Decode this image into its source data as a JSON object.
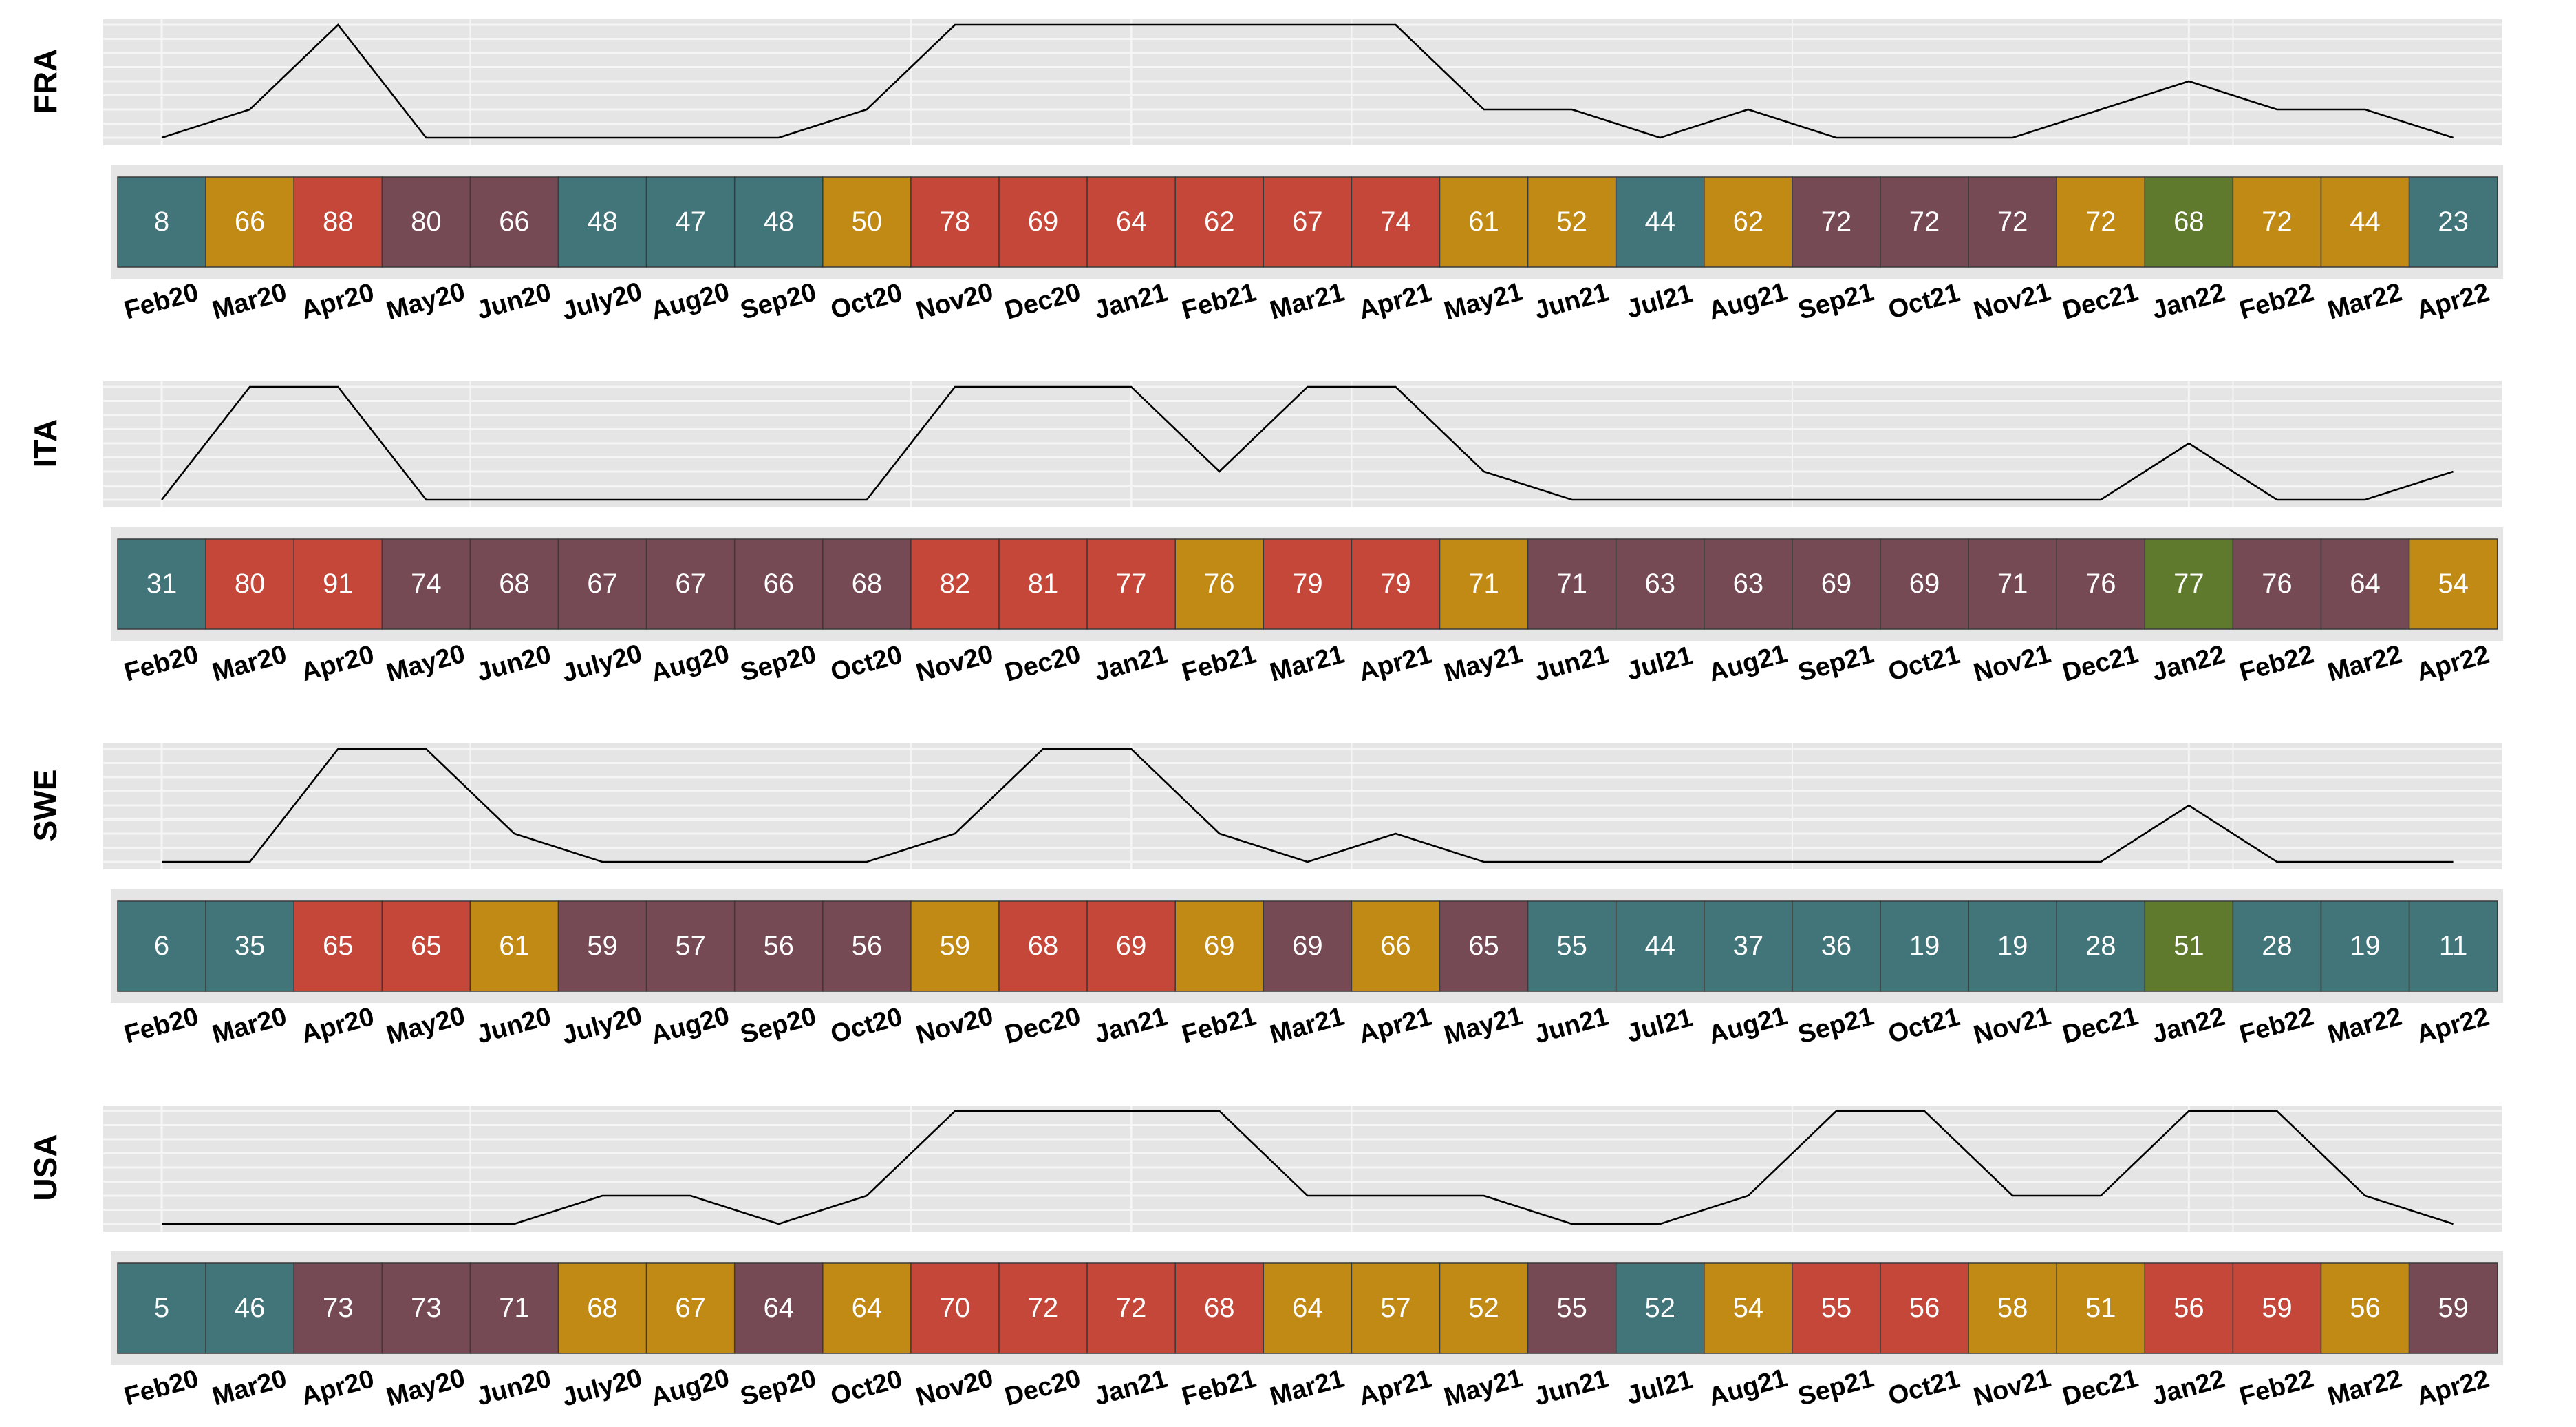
{
  "chart_data": {
    "type": "heatmap",
    "months": [
      "Feb20",
      "Mar20",
      "Apr20",
      "May20",
      "Jun20",
      "July20",
      "Aug20",
      "Sep20",
      "Oct20",
      "Nov20",
      "Dec20",
      "Jan21",
      "Feb21",
      "Mar21",
      "Apr21",
      "May21",
      "Jun21",
      "Jul21",
      "Aug21",
      "Sep21",
      "Oct21",
      "Nov21",
      "Dec21",
      "Jan22",
      "Feb22",
      "Mar22",
      "Apr22"
    ],
    "colors": {
      "teal": "#41757a",
      "gold": "#c08a14",
      "red": "#c5473a",
      "purple": "#754a55",
      "green": "#5f7a2d",
      "panel_bg": "#e5e5e5",
      "grid": "#f5f5f5",
      "line": "#000000"
    },
    "countries": [
      {
        "label": "FRA",
        "line_levels": [
          0,
          1,
          4,
          0,
          0,
          0,
          0,
          0,
          1,
          4,
          4,
          4,
          4,
          4,
          4,
          1,
          1,
          0,
          1,
          0,
          0,
          0,
          1,
          2,
          1,
          1,
          0
        ],
        "tiles": [
          {
            "value": 8,
            "color": "teal"
          },
          {
            "value": 66,
            "color": "gold"
          },
          {
            "value": 88,
            "color": "red"
          },
          {
            "value": 80,
            "color": "purple"
          },
          {
            "value": 66,
            "color": "purple"
          },
          {
            "value": 48,
            "color": "teal"
          },
          {
            "value": 47,
            "color": "teal"
          },
          {
            "value": 48,
            "color": "teal"
          },
          {
            "value": 50,
            "color": "gold"
          },
          {
            "value": 78,
            "color": "red"
          },
          {
            "value": 69,
            "color": "red"
          },
          {
            "value": 64,
            "color": "red"
          },
          {
            "value": 62,
            "color": "red"
          },
          {
            "value": 67,
            "color": "red"
          },
          {
            "value": 74,
            "color": "red"
          },
          {
            "value": 61,
            "color": "gold"
          },
          {
            "value": 52,
            "color": "gold"
          },
          {
            "value": 44,
            "color": "teal"
          },
          {
            "value": 62,
            "color": "gold"
          },
          {
            "value": 72,
            "color": "purple"
          },
          {
            "value": 72,
            "color": "purple"
          },
          {
            "value": 72,
            "color": "purple"
          },
          {
            "value": 72,
            "color": "gold"
          },
          {
            "value": 68,
            "color": "green"
          },
          {
            "value": 72,
            "color": "gold"
          },
          {
            "value": 44,
            "color": "gold"
          },
          {
            "value": 23,
            "color": "teal"
          }
        ]
      },
      {
        "label": "ITA",
        "line_levels": [
          0,
          4,
          4,
          0,
          0,
          0,
          0,
          0,
          0,
          4,
          4,
          4,
          1,
          4,
          4,
          1,
          0,
          0,
          0,
          0,
          0,
          0,
          0,
          2,
          0,
          0,
          1
        ],
        "tiles": [
          {
            "value": 31,
            "color": "teal"
          },
          {
            "value": 80,
            "color": "red"
          },
          {
            "value": 91,
            "color": "red"
          },
          {
            "value": 74,
            "color": "purple"
          },
          {
            "value": 68,
            "color": "purple"
          },
          {
            "value": 67,
            "color": "purple"
          },
          {
            "value": 67,
            "color": "purple"
          },
          {
            "value": 66,
            "color": "purple"
          },
          {
            "value": 68,
            "color": "purple"
          },
          {
            "value": 82,
            "color": "red"
          },
          {
            "value": 81,
            "color": "red"
          },
          {
            "value": 77,
            "color": "red"
          },
          {
            "value": 76,
            "color": "gold"
          },
          {
            "value": 79,
            "color": "red"
          },
          {
            "value": 79,
            "color": "red"
          },
          {
            "value": 71,
            "color": "gold"
          },
          {
            "value": 71,
            "color": "purple"
          },
          {
            "value": 63,
            "color": "purple"
          },
          {
            "value": 63,
            "color": "purple"
          },
          {
            "value": 69,
            "color": "purple"
          },
          {
            "value": 69,
            "color": "purple"
          },
          {
            "value": 71,
            "color": "purple"
          },
          {
            "value": 76,
            "color": "purple"
          },
          {
            "value": 77,
            "color": "green"
          },
          {
            "value": 76,
            "color": "purple"
          },
          {
            "value": 64,
            "color": "purple"
          },
          {
            "value": 54,
            "color": "gold"
          }
        ]
      },
      {
        "label": "SWE",
        "line_levels": [
          0,
          0,
          4,
          4,
          1,
          0,
          0,
          0,
          0,
          1,
          4,
          4,
          1,
          0,
          1,
          0,
          0,
          0,
          0,
          0,
          0,
          0,
          0,
          2,
          0,
          0,
          0
        ],
        "tiles": [
          {
            "value": 6,
            "color": "teal"
          },
          {
            "value": 35,
            "color": "teal"
          },
          {
            "value": 65,
            "color": "red"
          },
          {
            "value": 65,
            "color": "red"
          },
          {
            "value": 61,
            "color": "gold"
          },
          {
            "value": 59,
            "color": "purple"
          },
          {
            "value": 57,
            "color": "purple"
          },
          {
            "value": 56,
            "color": "purple"
          },
          {
            "value": 56,
            "color": "purple"
          },
          {
            "value": 59,
            "color": "gold"
          },
          {
            "value": 68,
            "color": "red"
          },
          {
            "value": 69,
            "color": "red"
          },
          {
            "value": 69,
            "color": "gold"
          },
          {
            "value": 69,
            "color": "purple"
          },
          {
            "value": 66,
            "color": "gold"
          },
          {
            "value": 65,
            "color": "purple"
          },
          {
            "value": 55,
            "color": "teal"
          },
          {
            "value": 44,
            "color": "teal"
          },
          {
            "value": 37,
            "color": "teal"
          },
          {
            "value": 36,
            "color": "teal"
          },
          {
            "value": 19,
            "color": "teal"
          },
          {
            "value": 19,
            "color": "teal"
          },
          {
            "value": 28,
            "color": "teal"
          },
          {
            "value": 51,
            "color": "green"
          },
          {
            "value": 28,
            "color": "teal"
          },
          {
            "value": 19,
            "color": "teal"
          },
          {
            "value": 11,
            "color": "teal"
          }
        ]
      },
      {
        "label": "USA",
        "line_levels": [
          0,
          0,
          0,
          0,
          0,
          1,
          1,
          0,
          1,
          4,
          4,
          4,
          4,
          1,
          1,
          1,
          0,
          0,
          1,
          4,
          4,
          1,
          1,
          4,
          4,
          1,
          0
        ],
        "tiles": [
          {
            "value": 5,
            "color": "teal"
          },
          {
            "value": 46,
            "color": "teal"
          },
          {
            "value": 73,
            "color": "purple"
          },
          {
            "value": 73,
            "color": "purple"
          },
          {
            "value": 71,
            "color": "purple"
          },
          {
            "value": 68,
            "color": "gold"
          },
          {
            "value": 67,
            "color": "gold"
          },
          {
            "value": 64,
            "color": "purple"
          },
          {
            "value": 64,
            "color": "gold"
          },
          {
            "value": 70,
            "color": "red"
          },
          {
            "value": 72,
            "color": "red"
          },
          {
            "value": 72,
            "color": "red"
          },
          {
            "value": 68,
            "color": "red"
          },
          {
            "value": 64,
            "color": "gold"
          },
          {
            "value": 57,
            "color": "gold"
          },
          {
            "value": 52,
            "color": "gold"
          },
          {
            "value": 55,
            "color": "purple"
          },
          {
            "value": 52,
            "color": "teal"
          },
          {
            "value": 54,
            "color": "gold"
          },
          {
            "value": 55,
            "color": "red"
          },
          {
            "value": 56,
            "color": "red"
          },
          {
            "value": 58,
            "color": "gold"
          },
          {
            "value": 51,
            "color": "gold"
          },
          {
            "value": 56,
            "color": "red"
          },
          {
            "value": 59,
            "color": "red"
          },
          {
            "value": 56,
            "color": "gold"
          },
          {
            "value": 59,
            "color": "purple"
          }
        ]
      }
    ]
  }
}
